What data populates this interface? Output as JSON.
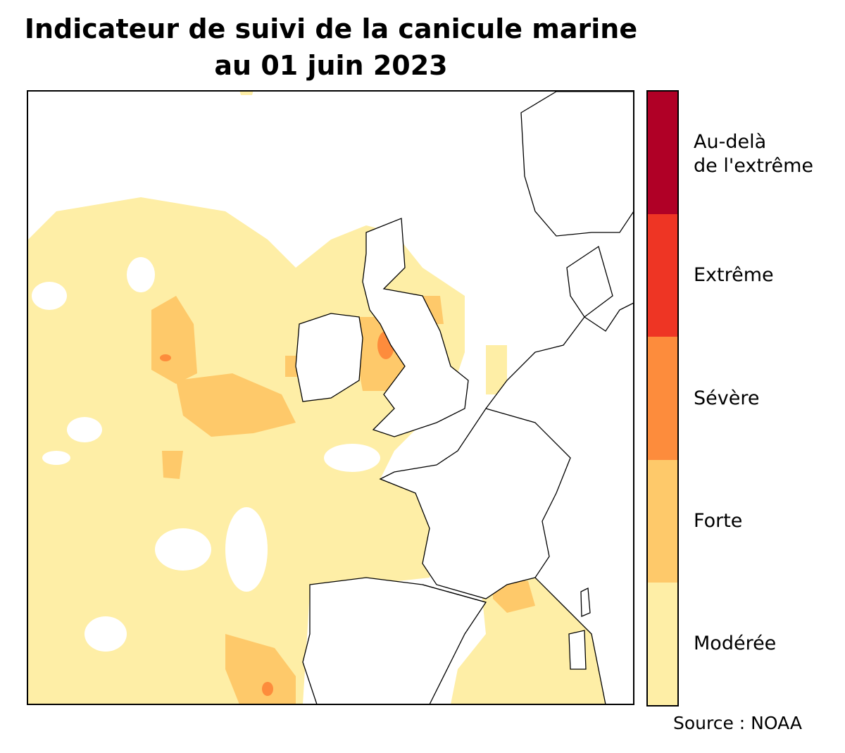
{
  "title_line1": "Indicateur de suivi de la canicule marine",
  "title_line2": "au 01 juin 2023",
  "legend": [
    {
      "label_line1": "Au-delà",
      "label_line2": "de l'extrême",
      "color": "#b00026"
    },
    {
      "label_line1": "Extrême",
      "color": "#ee3524"
    },
    {
      "label_line1": "Sévère",
      "color": "#fd8c3c"
    },
    {
      "label_line1": "Forte",
      "color": "#fec96a"
    },
    {
      "label_line1": "Modérée",
      "color": "#feeea6"
    }
  ],
  "source": "Source : NOAA"
}
